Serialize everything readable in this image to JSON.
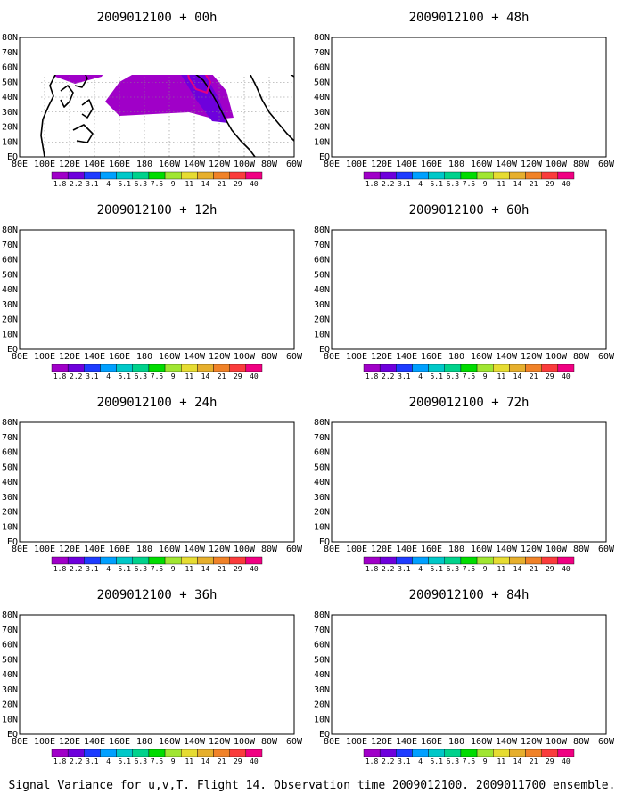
{
  "figure": {
    "caption": "Signal Variance for u,v,T. Flight 14. Observation time 2009012100. 2009011700 ensemble.",
    "colors": {
      "purple": "#a000c8",
      "violet": "#6e00dc",
      "blue": "#1e3cff",
      "lightblue": "#00a0ff",
      "cyan": "#00c8c8",
      "teal": "#00d28c",
      "green": "#00dc00",
      "lime": "#a0e632",
      "yellow": "#e6dc32",
      "gold": "#e6af2d",
      "orange": "#f08228",
      "red": "#fa3c3c",
      "magenta": "#f00082",
      "obs_outline": "#e6007e"
    },
    "colorbar": {
      "labels": [
        "1.8",
        "2.2",
        "3.1",
        "4",
        "5.1",
        "6.3",
        "7.5",
        "9",
        "11",
        "14",
        "21",
        "29",
        "40"
      ],
      "colors": [
        "#a000c8",
        "#6e00dc",
        "#1e3cff",
        "#00a0ff",
        "#00c8c8",
        "#00d28c",
        "#00dc00",
        "#a0e632",
        "#e6dc32",
        "#e6af2d",
        "#f08228",
        "#fa3c3c",
        "#f00082"
      ]
    },
    "lon_labels": [
      "80E",
      "100E",
      "120E",
      "140E",
      "160E",
      "180",
      "160W",
      "140W",
      "120W",
      "100W",
      "80W",
      "60W"
    ],
    "lat_labels": [
      "EQ",
      "10N",
      "20N",
      "30N",
      "40N",
      "50N",
      "60N",
      "70N",
      "80N"
    ],
    "panels": [
      {
        "title": "2009012100 + 00h",
        "lead": "00h"
      },
      {
        "title": "2009012100 + 48h",
        "lead": "48h"
      },
      {
        "title": "2009012100 + 12h",
        "lead": "12h"
      },
      {
        "title": "2009012100 + 60h",
        "lead": "60h"
      },
      {
        "title": "2009012100 + 24h",
        "lead": "24h"
      },
      {
        "title": "2009012100 + 72h",
        "lead": "72h"
      },
      {
        "title": "2009012100 + 36h",
        "lead": "36h"
      },
      {
        "title": "2009012100 + 84h",
        "lead": "84h"
      }
    ]
  }
}
